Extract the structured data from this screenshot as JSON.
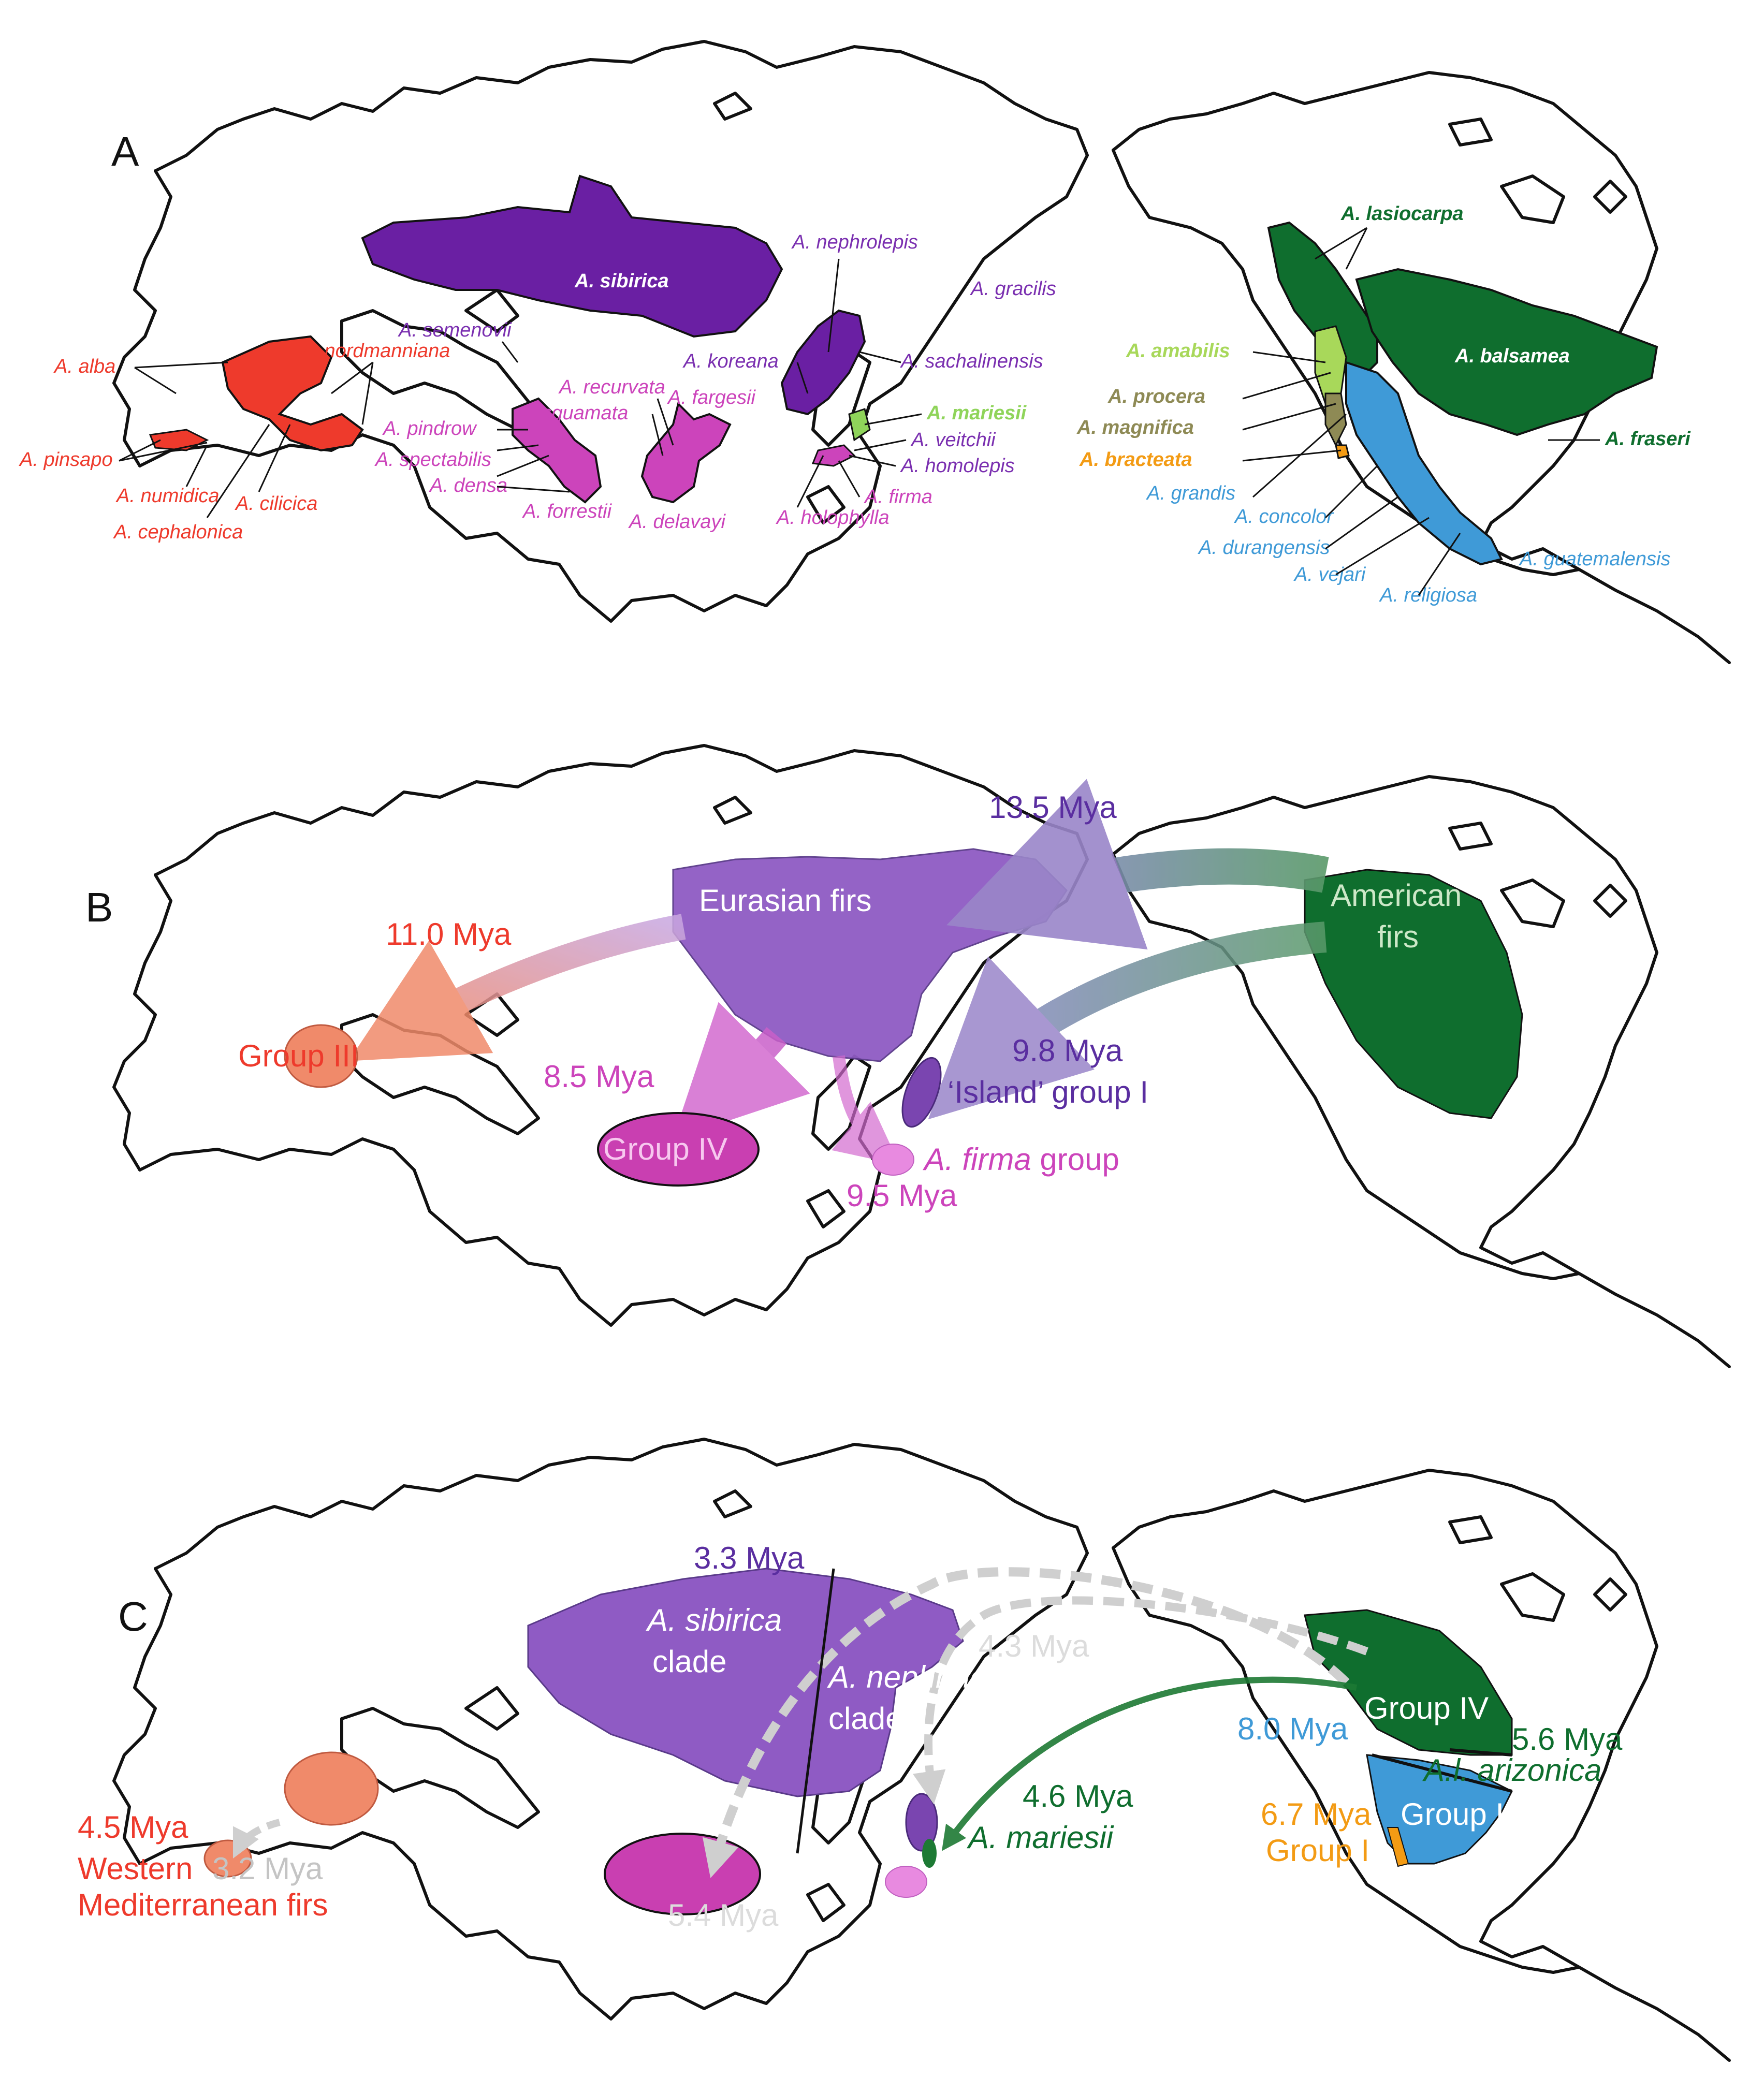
{
  "panels": {
    "a": {
      "letter": "A",
      "species": {
        "alba": "A. alba",
        "nordmanniana": "A. nordmanniana",
        "pinsapo": "A. pinsapo",
        "numidica": "A. numidica",
        "cilicica": "A. cilicica",
        "cephalonica": "A. cephalonica",
        "sibirica": "A. sibirica",
        "semenovii": "A. semenovii",
        "recurvata": "A. recurvata",
        "fargesii": "A. fargesii",
        "pindrow": "A. pindrow",
        "squamata": "A. squamata",
        "spectabilis": "A. spectabilis",
        "densa": "A. densa",
        "forrestii": "A. forrestii",
        "delavayi": "A. delavayi",
        "nephrolepis": "A. nephrolepis",
        "gracilis": "A. gracilis",
        "koreana": "A. koreana",
        "sachalinensis": "A. sachalinensis",
        "mariesii": "A. mariesii",
        "veitchii": "A. veitchii",
        "homolepis": "A. homolepis",
        "firma": "A. firma",
        "holophylla": "A. holophylla",
        "lasiocarpa": "A. lasiocarpa",
        "balsamea": "A. balsamea",
        "amabilis": "A. amabilis",
        "procera": "A. procera",
        "magnifica": "A. magnifica",
        "bracteata": "A. bracteata",
        "fraseri": "A. fraseri",
        "grandis": "A. grandis",
        "concolor": "A. concolor",
        "durangensis": "A. durangensis",
        "vejari": "A. vejari",
        "religiosa": "A. religiosa",
        "guatemalensis": "A. guatemalensis"
      }
    },
    "b": {
      "letter": "B",
      "eurasian": "Eurasian firs",
      "american_1": "American",
      "american_2": "firs",
      "group3": "Group III",
      "group4": "Group IV",
      "island_group": "‘Island’ group I",
      "firma_name": "A. firma",
      "firma_suffix": " group",
      "t_13_5": "13.5 Mya",
      "t_11_0": "11.0 Mya",
      "t_8_5": "8.5 Mya",
      "t_9_8": "9.8 Mya",
      "t_9_5": "9.5 Mya"
    },
    "c": {
      "letter": "C",
      "sibirica_1": "A. sibirica",
      "sibirica_2": "clade",
      "nephrolepis_1": "A. nephrolepis",
      "nephrolepis_2": "clade",
      "group4": "Group IV",
      "group2": "Group II",
      "group1": "Group I",
      "arizonica": "A.l. arizonica",
      "mariesii": "A. mariesii",
      "western_1": "Western",
      "western_2": "Mediterranean firs",
      "t_3_3": "3.3 Mya",
      "t_4_3": "4.3 Mya",
      "t_5_4": "5.4 Mya",
      "t_4_6": "4.6 Mya",
      "t_4_5": "4.5 Mya",
      "t_3_2": "3.2 Mya",
      "t_8_0": "8.0 Mya",
      "t_5_6": "5.6 Mya",
      "t_6_7": "6.7 Mya"
    }
  },
  "colors": {
    "coastline": "#111111",
    "mediterranean_red": "#ee3a2c",
    "sibirica_purple": "#6a1fa3",
    "east_asia_magenta": "#cc44bb",
    "japan_green": "#8fd45a",
    "america_dark_green": "#0f6e2e",
    "amabilis_light_green": "#a8d85a",
    "procera_olive": "#8e8a55",
    "bracteata_orange": "#f39b14",
    "america_blue": "#3f9ad7",
    "eurasian_lavender": "#8f5bc4",
    "group_salmon": "#f08a6a",
    "group4_magenta": "#c93fb1",
    "dispersal_grey": "#cfcfcf"
  }
}
